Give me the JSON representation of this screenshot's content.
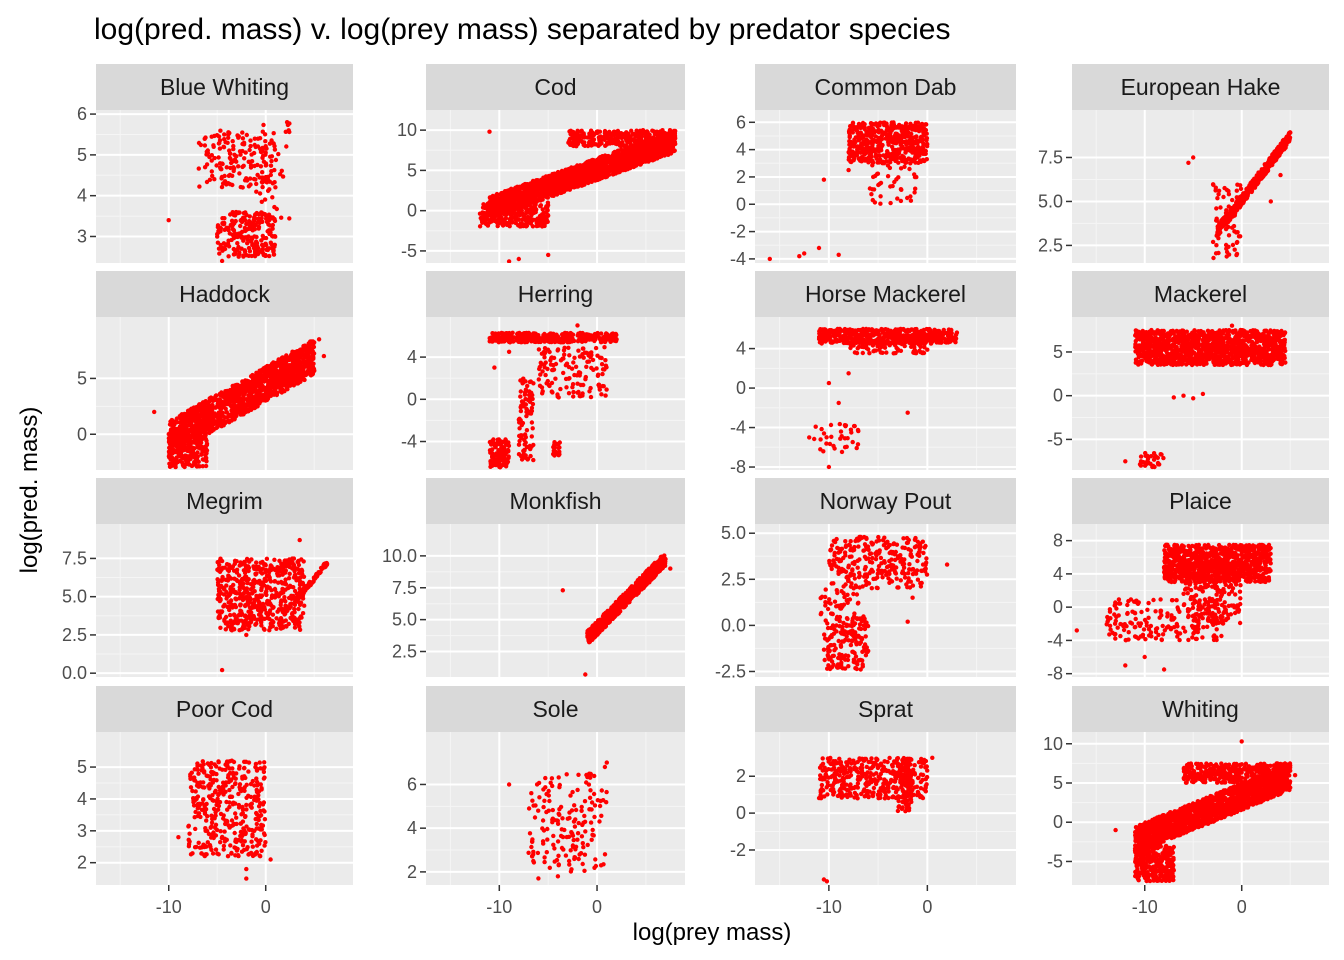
{
  "chart_data": {
    "type": "scatter",
    "title": "log(pred. mass) v. log(prey mass) separated by predator species",
    "xlabel": "log(prey mass)",
    "ylabel": "log(pred. mass)",
    "point_color": "#ff0000",
    "panel_background": "#ebebeb",
    "strip_background": "#d9d9d9",
    "grid": true,
    "xlim": [
      -17.5,
      9
    ],
    "x_ticks": [
      -10,
      0
    ],
    "panels": [
      {
        "name": "Blue Whiting",
        "ylim": [
          2.35,
          6.1
        ],
        "yticks": [
          3,
          4,
          5,
          6
        ],
        "ytick_labels": [
          "3",
          "4",
          "5",
          "6"
        ],
        "clusters": [
          {
            "x": [
              -7,
              1
            ],
            "y": [
              4.2,
              5.6
            ],
            "n": 170
          },
          {
            "x": [
              -5,
              1
            ],
            "y": [
              2.5,
              3.6
            ],
            "n": 230
          },
          {
            "x": [
              -1,
              2.5
            ],
            "y": [
              3.4,
              5.8
            ],
            "n": 40
          }
        ],
        "points": [
          [
            -10,
            3.4
          ],
          [
            2.2,
            5.8
          ],
          [
            -4.5,
            2.4
          ],
          [
            -0.3,
            2.6
          ]
        ]
      },
      {
        "name": "Cod",
        "ylim": [
          -6.5,
          12.5
        ],
        "yticks": [
          -5,
          0,
          5,
          10
        ],
        "ytick_labels": [
          "-5",
          "0",
          "5",
          "10"
        ],
        "clusters": [
          {
            "x": [
              -11,
              8
            ],
            "y": [
              -1,
              10
            ],
            "n": 1800,
            "corr": 0.75
          },
          {
            "x": [
              -12,
              -5
            ],
            "y": [
              -2,
              1
            ],
            "n": 300
          },
          {
            "x": [
              -3,
              8
            ],
            "y": [
              8,
              10
            ],
            "n": 300
          }
        ],
        "points": [
          [
            -8,
            -6
          ],
          [
            -5,
            -5.5
          ],
          [
            -11,
            9.8
          ],
          [
            -9,
            -6.3
          ],
          [
            8,
            9
          ]
        ]
      },
      {
        "name": "Common Dab",
        "ylim": [
          -4.3,
          6.9
        ],
        "yticks": [
          -4,
          -2,
          0,
          2,
          4,
          6
        ],
        "ytick_labels": [
          "-4",
          "-2",
          "0",
          "2",
          "4",
          "6"
        ],
        "clusters": [
          {
            "x": [
              -8,
              0
            ],
            "y": [
              3,
              6
            ],
            "n": 500
          },
          {
            "x": [
              -6,
              -1
            ],
            "y": [
              0,
              3
            ],
            "n": 40
          }
        ],
        "points": [
          [
            -16,
            -4
          ],
          [
            -13,
            -3.8
          ],
          [
            -12.5,
            -3.6
          ],
          [
            -11,
            -3.2
          ],
          [
            -9,
            -3.7
          ],
          [
            -10.5,
            1.8
          ],
          [
            -8,
            2.5
          ]
        ]
      },
      {
        "name": "European Hake",
        "ylim": [
          1.5,
          10.2
        ],
        "yticks": [
          2.5,
          5.0,
          7.5
        ],
        "ytick_labels": [
          "2.5",
          "5.0",
          "7.5"
        ],
        "clusters": [
          {
            "x": [
              -2.5,
              5
            ],
            "y": [
              3,
              9
            ],
            "n": 450,
            "corr": 0.9
          },
          {
            "x": [
              -3,
              0
            ],
            "y": [
              1.7,
              6
            ],
            "n": 70
          }
        ],
        "points": [
          [
            -5.5,
            7.2
          ],
          [
            -5,
            7.5
          ],
          [
            3,
            5
          ],
          [
            4,
            6.5
          ]
        ]
      },
      {
        "name": "Haddock",
        "ylim": [
          -3.2,
          10.5
        ],
        "yticks": [
          0,
          5
        ],
        "ytick_labels": [
          "0",
          "5"
        ],
        "clusters": [
          {
            "x": [
              -10,
              5
            ],
            "y": [
              -2,
              8.5
            ],
            "n": 1500,
            "corr": 0.7
          },
          {
            "x": [
              -10,
              -6
            ],
            "y": [
              -3,
              0
            ],
            "n": 200
          }
        ],
        "points": [
          [
            -11.5,
            2
          ],
          [
            5.5,
            8.5
          ],
          [
            6,
            7
          ]
        ]
      },
      {
        "name": "Herring",
        "ylim": [
          -6.7,
          7.8
        ],
        "yticks": [
          -4,
          0,
          4
        ],
        "ytick_labels": [
          "-4",
          "0",
          "4"
        ],
        "clusters": [
          {
            "x": [
              -11,
              2
            ],
            "y": [
              5.4,
              6.3
            ],
            "n": 350
          },
          {
            "x": [
              -6,
              1
            ],
            "y": [
              0,
              5
            ],
            "n": 140
          },
          {
            "x": [
              -11,
              -9
            ],
            "y": [
              -6.5,
              -3.8
            ],
            "n": 110
          },
          {
            "x": [
              -8,
              -6.5
            ],
            "y": [
              -6,
              2
            ],
            "n": 90
          },
          {
            "x": [
              -4.5,
              -3.8
            ],
            "y": [
              -5.5,
              -3.8
            ],
            "n": 25
          }
        ],
        "points": [
          [
            -2,
            7
          ],
          [
            -10.5,
            3
          ],
          [
            -9,
            4.5
          ]
        ]
      },
      {
        "name": "Horse Mackerel",
        "ylim": [
          -8.3,
          7.2
        ],
        "yticks": [
          -8,
          -4,
          0,
          4
        ],
        "ytick_labels": [
          "-8",
          "-4",
          "0",
          "4"
        ],
        "clusters": [
          {
            "x": [
              -11,
              3
            ],
            "y": [
              4.5,
              6
            ],
            "n": 500
          },
          {
            "x": [
              -8,
              0
            ],
            "y": [
              3.5,
              4.8
            ],
            "n": 80
          },
          {
            "x": [
              -11.5,
              -7
            ],
            "y": [
              -6.5,
              -3.5
            ],
            "n": 35
          }
        ],
        "points": [
          [
            -10,
            0.5
          ],
          [
            -8,
            1.5
          ],
          [
            -9,
            -1.5
          ],
          [
            -10,
            -8
          ],
          [
            -2,
            -2.5
          ],
          [
            -12,
            -5
          ]
        ]
      },
      {
        "name": "Mackerel",
        "ylim": [
          -8.5,
          9
        ],
        "yticks": [
          -5,
          0,
          5
        ],
        "ytick_labels": [
          "-5",
          "0",
          "5"
        ],
        "clusters": [
          {
            "x": [
              -11,
              4.5
            ],
            "y": [
              3.5,
              7.5
            ],
            "n": 1300
          },
          {
            "x": [
              -10.5,
              -8
            ],
            "y": [
              -8.2,
              -6.5
            ],
            "n": 30
          }
        ],
        "points": [
          [
            -7,
            -0.2
          ],
          [
            -6,
            0
          ],
          [
            -5,
            -0.3
          ],
          [
            -4,
            0.2
          ],
          [
            -12,
            -7.5
          ],
          [
            -1,
            8
          ]
        ]
      },
      {
        "name": "Megrim",
        "ylim": [
          -0.25,
          9.75
        ],
        "yticks": [
          0.0,
          2.5,
          5.0,
          7.5
        ],
        "ytick_labels": [
          "0.0",
          "2.5",
          "5.0",
          "7.5"
        ],
        "clusters": [
          {
            "x": [
              -5,
              4
            ],
            "y": [
              2.8,
              7.5
            ],
            "n": 600
          },
          {
            "x": [
              3,
              6.5
            ],
            "y": [
              4.5,
              7.5
            ],
            "n": 80,
            "corr": 0.9
          }
        ],
        "points": [
          [
            -4.5,
            0.2
          ],
          [
            3.5,
            8.7
          ],
          [
            -2,
            2.5
          ]
        ]
      },
      {
        "name": "Monkfish",
        "ylim": [
          0.5,
          12.5
        ],
        "yticks": [
          2.5,
          5.0,
          7.5,
          10.0
        ],
        "ytick_labels": [
          "2.5",
          "5.0",
          "7.5",
          "10.0"
        ],
        "clusters": [
          {
            "x": [
              -1,
              7
            ],
            "y": [
              3,
              10.3
            ],
            "n": 700,
            "corr": 0.85
          }
        ],
        "points": [
          [
            -3.5,
            7.3
          ],
          [
            -1.2,
            0.7
          ],
          [
            7.5,
            9
          ]
        ]
      },
      {
        "name": "Norway Pout",
        "ylim": [
          -2.8,
          5.5
        ],
        "yticks": [
          -2.5,
          0.0,
          2.5,
          5.0
        ],
        "ytick_labels": [
          "-2.5",
          "0.0",
          "2.5",
          "5.0"
        ],
        "clusters": [
          {
            "x": [
              -10,
              0
            ],
            "y": [
              2,
              4.8
            ],
            "n": 280
          },
          {
            "x": [
              -10.5,
              -6
            ],
            "y": [
              -2.4,
              0.5
            ],
            "n": 170
          },
          {
            "x": [
              -11,
              -7
            ],
            "y": [
              0.5,
              2
            ],
            "n": 40
          }
        ],
        "points": [
          [
            2,
            3.3
          ],
          [
            -2,
            0.2
          ],
          [
            -1.5,
            1.5
          ]
        ]
      },
      {
        "name": "Plaice",
        "ylim": [
          -8.4,
          10
        ],
        "yticks": [
          -8,
          -4,
          0,
          4,
          8
        ],
        "ytick_labels": [
          "-8",
          "-4",
          "0",
          "4",
          "8"
        ],
        "clusters": [
          {
            "x": [
              -8,
              3
            ],
            "y": [
              3,
              7.5
            ],
            "n": 900
          },
          {
            "x": [
              -14,
              -2
            ],
            "y": [
              -4,
              1
            ],
            "n": 200
          },
          {
            "x": [
              -6,
              0
            ],
            "y": [
              -2,
              4
            ],
            "n": 150
          }
        ],
        "points": [
          [
            -17,
            -2.8
          ],
          [
            -12,
            -7
          ],
          [
            -10,
            -6
          ],
          [
            -8,
            -7.5
          ],
          [
            2.5,
            6
          ]
        ]
      },
      {
        "name": "Poor Cod",
        "ylim": [
          1.3,
          6.1
        ],
        "yticks": [
          2,
          3,
          4,
          5
        ],
        "ytick_labels": [
          "2",
          "3",
          "4",
          "5"
        ],
        "clusters": [
          {
            "x": [
              -8,
              0
            ],
            "y": [
              2.2,
              5.2
            ],
            "n": 400
          }
        ],
        "points": [
          [
            -9,
            2.8
          ],
          [
            -2,
            1.5
          ],
          [
            -2,
            1.8
          ],
          [
            0.5,
            2.1
          ]
        ]
      },
      {
        "name": "Sole",
        "ylim": [
          1.4,
          8.4
        ],
        "yticks": [
          2,
          4,
          6
        ],
        "ytick_labels": [
          "2",
          "4",
          "6"
        ],
        "clusters": [
          {
            "x": [
              -7,
              1
            ],
            "y": [
              2,
              6.5
            ],
            "n": 170
          }
        ],
        "points": [
          [
            -9,
            6
          ],
          [
            1,
            7
          ],
          [
            0.8,
            6.8
          ],
          [
            -6,
            1.7
          ],
          [
            -4,
            1.8
          ]
        ]
      },
      {
        "name": "Sprat",
        "ylim": [
          -3.9,
          4.4
        ],
        "yticks": [
          -2,
          0,
          2
        ],
        "ytick_labels": [
          "-2",
          "0",
          "2"
        ],
        "clusters": [
          {
            "x": [
              -11,
              0
            ],
            "y": [
              0.8,
              3
            ],
            "n": 400
          },
          {
            "x": [
              -3,
              -1.5
            ],
            "y": [
              0,
              3
            ],
            "n": 80
          }
        ],
        "points": [
          [
            -10.5,
            -3.6
          ],
          [
            -10.2,
            -3.7
          ],
          [
            0.5,
            3
          ]
        ]
      },
      {
        "name": "Whiting",
        "ylim": [
          -8,
          11.5
        ],
        "yticks": [
          -5,
          0,
          5,
          10
        ],
        "ytick_labels": [
          "-5",
          "0",
          "5",
          "10"
        ],
        "clusters": [
          {
            "x": [
              -11,
              5
            ],
            "y": [
              -4,
              7.5
            ],
            "n": 1800,
            "corr": 0.7
          },
          {
            "x": [
              -11,
              -7
            ],
            "y": [
              -7.5,
              -3
            ],
            "n": 300
          },
          {
            "x": [
              -6,
              5
            ],
            "y": [
              5,
              7.5
            ],
            "n": 400
          }
        ],
        "points": [
          [
            -13,
            -1
          ],
          [
            0,
            10.3
          ],
          [
            5.5,
            6
          ]
        ]
      }
    ]
  }
}
